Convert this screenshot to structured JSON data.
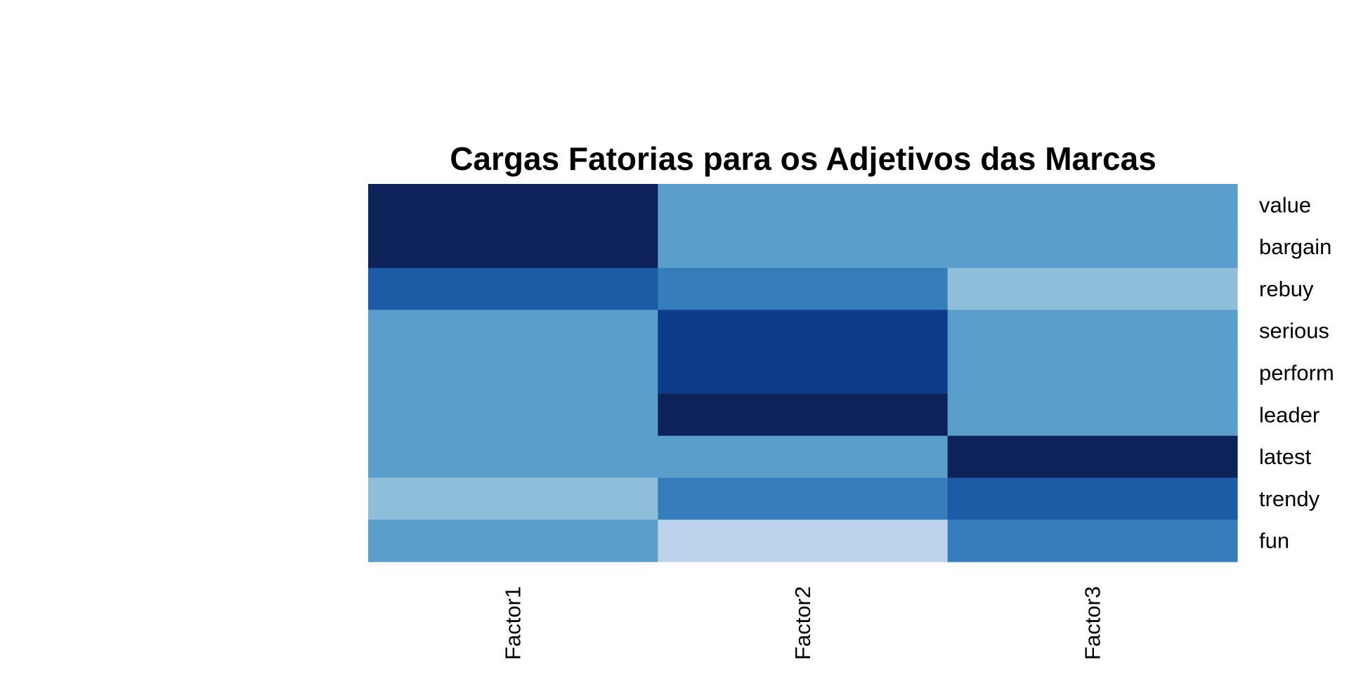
{
  "chart_data": {
    "type": "heatmap",
    "title": "Cargas Fatorias para os Adjetivos das Marcas",
    "columns": [
      "Factor1",
      "Factor2",
      "Factor3"
    ],
    "rows": [
      "value",
      "bargain",
      "rebuy",
      "serious",
      "perform",
      "leader",
      "latest",
      "trendy",
      "fun"
    ],
    "values": [
      [
        0.9,
        0.0,
        0.0
      ],
      [
        0.9,
        0.0,
        0.0
      ],
      [
        0.6,
        0.4,
        -0.2
      ],
      [
        0.0,
        0.8,
        0.0
      ],
      [
        0.0,
        0.8,
        0.0
      ],
      [
        0.0,
        0.9,
        0.0
      ],
      [
        0.0,
        0.0,
        0.9
      ],
      [
        -0.2,
        0.4,
        0.6
      ],
      [
        0.0,
        -0.4,
        0.4
      ]
    ],
    "color_scale": {
      "levels": [
        -0.4,
        -0.2,
        0.0,
        0.4,
        0.6,
        0.8,
        0.9
      ],
      "colors": [
        "#bdd3ec",
        "#8fbedb",
        "#5a9fcc",
        "#367dbb",
        "#1c5ca7",
        "#0c3c89",
        "#0c2259"
      ]
    },
    "legend": "none",
    "grid": false
  }
}
